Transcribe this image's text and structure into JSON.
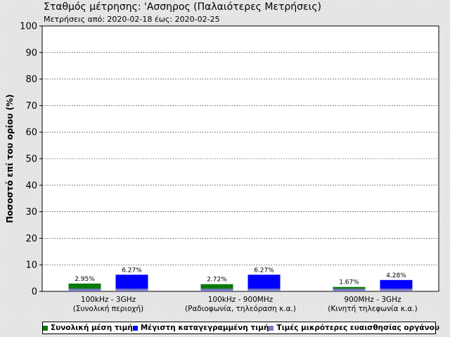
{
  "header": {
    "title": "Σταθμός μέτρησης: 'Ασσηρος (Παλαιότερες Μετρήσεις)",
    "subtitle": "Μετρήσεις από: 2020-02-18 έως: 2020-02-25"
  },
  "chart_data": {
    "type": "bar",
    "title": "Σταθμός μέτρησης: 'Ασσηρος (Παλαιότερες Μετρήσεις)",
    "subtitle": "Μετρήσεις από: 2020-02-18 έως: 2020-02-25",
    "xlabel": "",
    "ylabel": "Ποσοστό επί του ορίου (%)",
    "ylim": [
      0,
      100
    ],
    "yticks": [
      0,
      10,
      20,
      30,
      40,
      50,
      60,
      70,
      80,
      90,
      100
    ],
    "grid": "horizontal-dashed",
    "legend_position": "bottom",
    "categories": [
      {
        "line1": "100kHz - 3GHz",
        "line2": "(Συνολική περιοχή)"
      },
      {
        "line1": "100kHz - 900MHz",
        "line2": "(Ραδιοφωνία, τηλεόραση κ.α.)"
      },
      {
        "line1": "900MHz - 3GHz",
        "line2": "(Κινητή τηλεφωνία κ.α.)"
      }
    ],
    "series": [
      {
        "name": "Συνολική μέση τιμή",
        "color": "#0a7a0a",
        "values": [
          2.95,
          2.72,
          1.67
        ],
        "labels": [
          "2.95%",
          "2.72%",
          "1.67%"
        ]
      },
      {
        "name": "Μέγιστη καταγεγραμμένη τιμή",
        "color": "#0000ff",
        "values": [
          6.27,
          6.27,
          4.28
        ],
        "labels": [
          "6.27%",
          "6.27%",
          "4.28%"
        ]
      }
    ],
    "sensitivity": {
      "name": "Τιμές μικρότερες ευαισθησίας οργάνου",
      "color": "#7b7bc4",
      "value": 1.0
    }
  }
}
